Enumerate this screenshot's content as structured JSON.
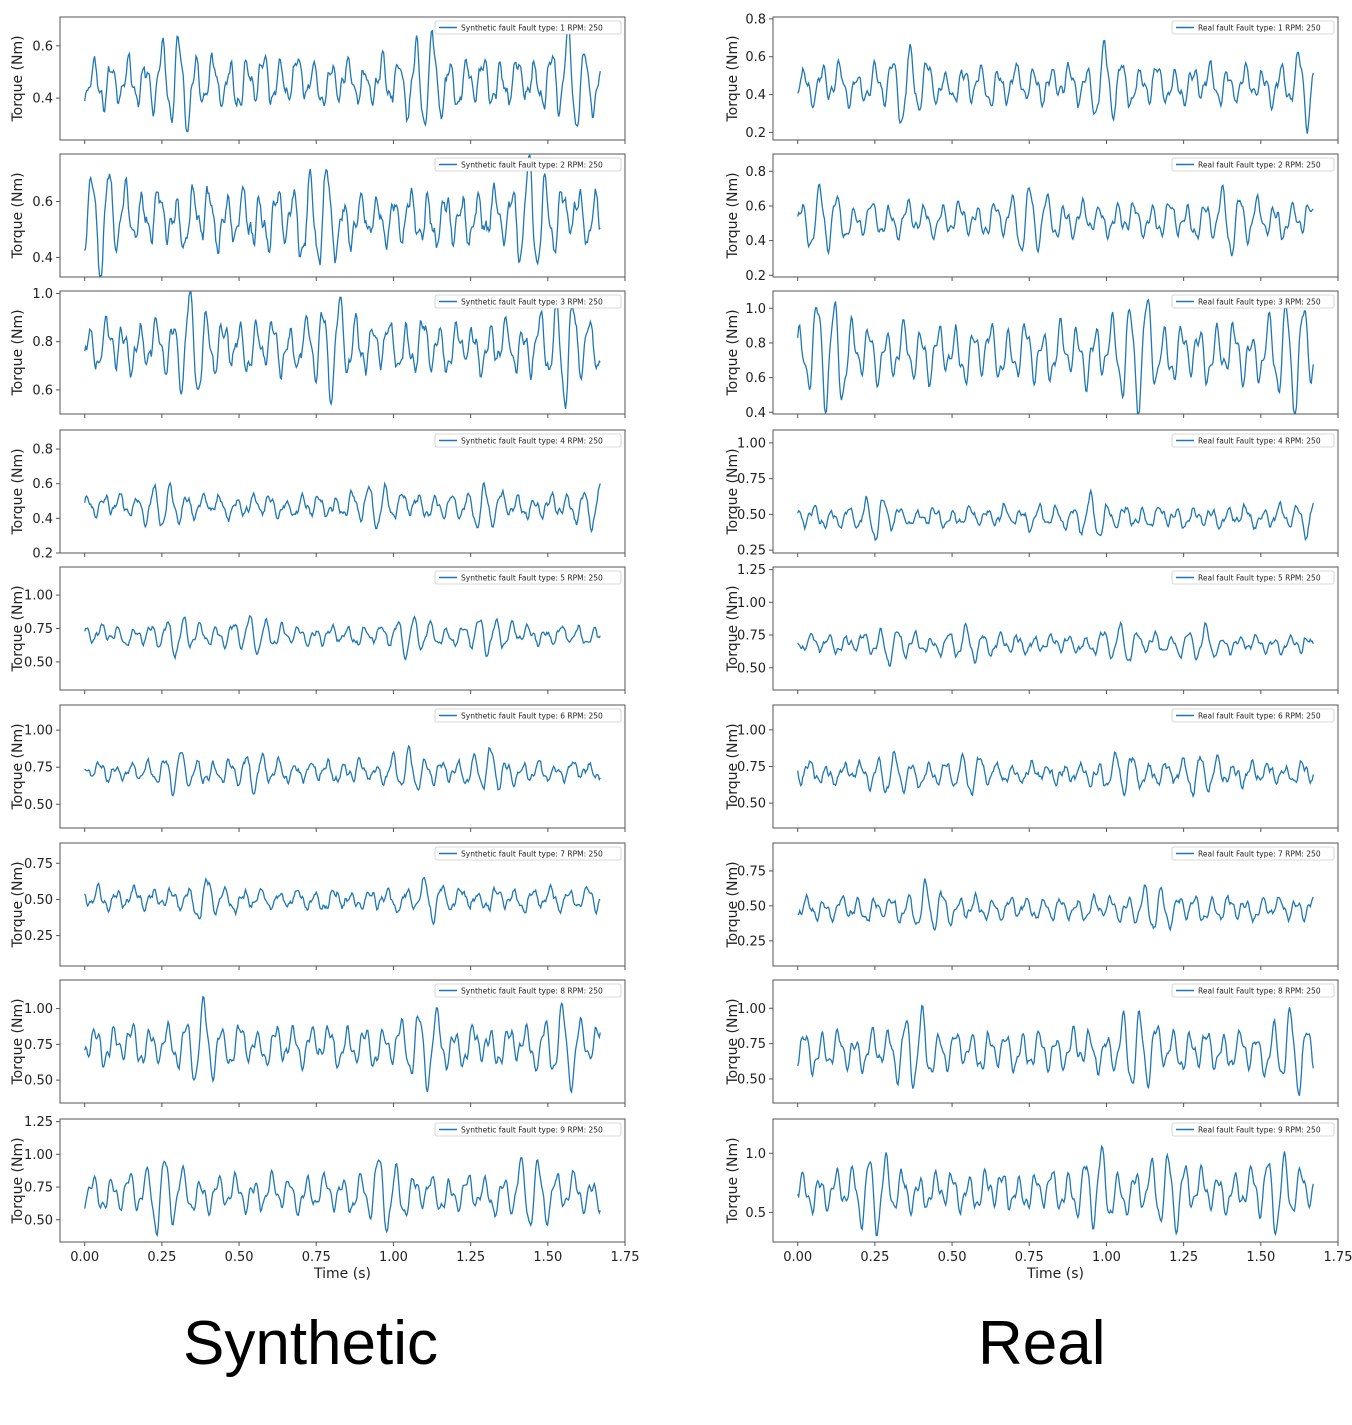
{
  "captions": {
    "left": "Synthetic",
    "right": "Real"
  },
  "style": {
    "line_color": "#1f77b4",
    "axis_color": "#555555",
    "text_color": "#222222"
  },
  "chart_data": [
    {
      "type": "line",
      "group": "Synthetic",
      "fault_type": 1,
      "legend": "Synthetic fault Fault type: 1 RPM: 250",
      "ylabel": "Torque (Nm)",
      "xlabel": "",
      "xlim": [
        -0.08,
        1.75
      ],
      "ylim": [
        0.24,
        0.71
      ],
      "yticks": [
        0.4,
        0.6
      ],
      "ytick_labels": [
        "0.4",
        "0.6"
      ],
      "x_start": 0.0,
      "x_end": 1.67,
      "mean": 0.46,
      "amp": 0.065,
      "noise": 0.04,
      "bursts": [
        [
          0.3,
          0.05
        ],
        [
          1.1,
          0.06
        ],
        [
          1.58,
          0.05
        ]
      ]
    },
    {
      "type": "line",
      "group": "Synthetic",
      "fault_type": 2,
      "legend": "Synthetic fault Fault type: 2 RPM: 250",
      "ylabel": "Torque (Nm)",
      "xlabel": "",
      "xlim": [
        -0.08,
        1.75
      ],
      "ylim": [
        0.33,
        0.77
      ],
      "yticks": [
        0.4,
        0.6
      ],
      "ytick_labels": [
        "0.4",
        "0.6"
      ],
      "x_start": 0.0,
      "x_end": 1.67,
      "mean": 0.54,
      "amp": 0.07,
      "noise": 0.045,
      "bursts": [
        [
          0.05,
          0.04
        ],
        [
          0.75,
          0.06
        ],
        [
          1.45,
          0.08
        ]
      ]
    },
    {
      "type": "line",
      "group": "Synthetic",
      "fault_type": 3,
      "legend": "Synthetic fault Fault type: 3 RPM: 250",
      "ylabel": "Torque (Nm)",
      "xlabel": "",
      "xlim": [
        -0.08,
        1.75
      ],
      "ylim": [
        0.5,
        1.01
      ],
      "yticks": [
        0.6,
        0.8,
        1.0
      ],
      "ytick_labels": [
        "0.6",
        "0.8",
        "1.0"
      ],
      "x_start": 0.0,
      "x_end": 1.67,
      "mean": 0.78,
      "amp": 0.075,
      "noise": 0.04,
      "bursts": [
        [
          0.35,
          0.06
        ],
        [
          0.8,
          0.06
        ],
        [
          1.55,
          0.07
        ]
      ]
    },
    {
      "type": "line",
      "group": "Synthetic",
      "fault_type": 4,
      "legend": "Synthetic fault Fault type: 4 RPM: 250",
      "ylabel": "Torque (Nm)",
      "xlabel": "",
      "xlim": [
        -0.08,
        1.75
      ],
      "ylim": [
        0.2,
        0.91
      ],
      "yticks": [
        0.2,
        0.4,
        0.6,
        0.8
      ],
      "ytick_labels": [
        "0.2",
        "0.4",
        "0.6",
        "0.8"
      ],
      "x_start": 0.0,
      "x_end": 1.67,
      "mean": 0.47,
      "amp": 0.045,
      "noise": 0.035,
      "bursts": [
        [
          0.25,
          0.04
        ],
        [
          0.95,
          0.05
        ],
        [
          1.3,
          0.05
        ],
        [
          1.65,
          0.03
        ]
      ]
    },
    {
      "type": "line",
      "group": "Synthetic",
      "fault_type": 5,
      "legend": "Synthetic fault Fault type: 5 RPM: 250",
      "ylabel": "Torque (Nm)",
      "xlabel": "",
      "xlim": [
        -0.08,
        1.75
      ],
      "ylim": [
        0.29,
        1.21
      ],
      "yticks": [
        0.5,
        0.75,
        1.0
      ],
      "ytick_labels": [
        "0.50",
        "0.75",
        "1.00"
      ],
      "x_start": 0.0,
      "x_end": 1.67,
      "mean": 0.7,
      "amp": 0.05,
      "noise": 0.035,
      "bursts": [
        [
          0.3,
          0.05
        ],
        [
          0.55,
          0.05
        ],
        [
          1.05,
          0.05
        ],
        [
          1.3,
          0.05
        ]
      ]
    },
    {
      "type": "line",
      "group": "Synthetic",
      "fault_type": 6,
      "legend": "Synthetic fault Fault type: 6 RPM: 250",
      "ylabel": "Torque (Nm)",
      "xlabel": "",
      "xlim": [
        -0.08,
        1.75
      ],
      "ylim": [
        0.34,
        1.17
      ],
      "yticks": [
        0.5,
        0.75,
        1.0
      ],
      "ytick_labels": [
        "0.50",
        "0.75",
        "1.00"
      ],
      "x_start": 0.0,
      "x_end": 1.67,
      "mean": 0.72,
      "amp": 0.05,
      "noise": 0.04,
      "bursts": [
        [
          0.3,
          0.06
        ],
        [
          0.55,
          0.06
        ],
        [
          1.05,
          0.05
        ],
        [
          1.3,
          0.06
        ]
      ]
    },
    {
      "type": "line",
      "group": "Synthetic",
      "fault_type": 7,
      "legend": "Synthetic fault Fault type: 7 RPM: 250",
      "ylabel": "Torque (Nm)",
      "xlabel": "",
      "xlim": [
        -0.08,
        1.75
      ],
      "ylim": [
        0.04,
        0.89
      ],
      "yticks": [
        0.25,
        0.5,
        0.75
      ],
      "ytick_labels": [
        "0.25",
        "0.50",
        "0.75"
      ],
      "x_start": 0.0,
      "x_end": 1.67,
      "mean": 0.5,
      "amp": 0.05,
      "noise": 0.04,
      "bursts": [
        [
          0.4,
          0.06
        ],
        [
          1.12,
          0.06
        ]
      ]
    },
    {
      "type": "line",
      "group": "Synthetic",
      "fault_type": 8,
      "legend": "Synthetic fault Fault type: 8 RPM: 250",
      "ylabel": "Torque (Nm)",
      "xlabel": "",
      "xlim": [
        -0.08,
        1.75
      ],
      "ylim": [
        0.34,
        1.2
      ],
      "yticks": [
        0.5,
        0.75,
        1.0
      ],
      "ytick_labels": [
        "0.50",
        "0.75",
        "1.00"
      ],
      "x_start": 0.0,
      "x_end": 1.67,
      "mean": 0.74,
      "amp": 0.1,
      "noise": 0.035,
      "bursts": [
        [
          0.38,
          0.06
        ],
        [
          1.1,
          0.07
        ],
        [
          1.55,
          0.05
        ]
      ]
    },
    {
      "type": "line",
      "group": "Synthetic",
      "fault_type": 9,
      "legend": "Synthetic fault Fault type: 9 RPM: 250",
      "ylabel": "Torque (Nm)",
      "xlabel": "Time (s)",
      "xlim": [
        -0.08,
        1.75
      ],
      "ylim": [
        0.33,
        1.27
      ],
      "yticks": [
        0.5,
        0.75,
        1.0,
        1.25
      ],
      "ytick_labels": [
        "0.50",
        "0.75",
        "1.00",
        "1.25"
      ],
      "x_start": 0.0,
      "x_end": 1.67,
      "mean": 0.7,
      "amp": 0.1,
      "noise": 0.035,
      "bursts": [
        [
          0.25,
          0.05
        ],
        [
          0.97,
          0.05
        ],
        [
          1.45,
          0.06
        ]
      ],
      "xticks": [
        0.0,
        0.25,
        0.5,
        0.75,
        1.0,
        1.25,
        1.5,
        1.75
      ],
      "xtick_labels": [
        "0.00",
        "0.25",
        "0.50",
        "0.75",
        "1.00",
        "1.25",
        "1.50",
        "1.75"
      ]
    },
    {
      "type": "line",
      "group": "Real",
      "fault_type": 1,
      "legend": "Real fault Fault type: 1 RPM: 250",
      "ylabel": "Torque (Nm)",
      "xlabel": "",
      "xlim": [
        -0.08,
        1.75
      ],
      "ylim": [
        0.16,
        0.81
      ],
      "yticks": [
        0.2,
        0.4,
        0.6,
        0.8
      ],
      "ytick_labels": [
        "0.2",
        "0.4",
        "0.6",
        "0.8"
      ],
      "x_start": 0.0,
      "x_end": 1.67,
      "mean": 0.45,
      "amp": 0.07,
      "noise": 0.035,
      "bursts": [
        [
          0.35,
          0.06
        ],
        [
          1.0,
          0.06
        ],
        [
          1.66,
          0.02
        ]
      ]
    },
    {
      "type": "line",
      "group": "Real",
      "fault_type": 2,
      "legend": "Real fault Fault type: 2 RPM: 250",
      "ylabel": "Torque (Nm)",
      "xlabel": "",
      "xlim": [
        -0.08,
        1.75
      ],
      "ylim": [
        0.19,
        0.9
      ],
      "yticks": [
        0.2,
        0.4,
        0.6,
        0.8
      ],
      "ytick_labels": [
        "0.2",
        "0.4",
        "0.6",
        "0.8"
      ],
      "x_start": 0.0,
      "x_end": 1.67,
      "mean": 0.52,
      "amp": 0.07,
      "noise": 0.03,
      "bursts": [
        [
          0.08,
          0.04
        ],
        [
          0.75,
          0.06
        ],
        [
          1.4,
          0.1
        ]
      ]
    },
    {
      "type": "line",
      "group": "Real",
      "fault_type": 3,
      "legend": "Real fault Fault type: 3 RPM: 250",
      "ylabel": "Torque (Nm)",
      "xlabel": "",
      "xlim": [
        -0.08,
        1.75
      ],
      "ylim": [
        0.39,
        1.1
      ],
      "yticks": [
        0.4,
        0.6,
        0.8,
        1.0
      ],
      "ytick_labels": [
        "0.4",
        "0.6",
        "0.8",
        "1.0"
      ],
      "x_start": 0.0,
      "x_end": 1.67,
      "mean": 0.74,
      "amp": 0.12,
      "noise": 0.03,
      "bursts": [
        [
          0.1,
          0.05
        ],
        [
          1.1,
          0.05
        ],
        [
          1.6,
          0.05
        ]
      ]
    },
    {
      "type": "line",
      "group": "Real",
      "fault_type": 4,
      "legend": "Real fault Fault type: 4 RPM: 250",
      "ylabel": "Torque (Nm)",
      "xlabel": "",
      "xlim": [
        -0.08,
        1.75
      ],
      "ylim": [
        0.23,
        1.09
      ],
      "yticks": [
        0.25,
        0.5,
        0.75,
        1.0
      ],
      "ytick_labels": [
        "0.25",
        "0.50",
        "0.75",
        "1.00"
      ],
      "x_start": 0.0,
      "x_end": 1.67,
      "mean": 0.48,
      "amp": 0.05,
      "noise": 0.035,
      "bursts": [
        [
          0.25,
          0.04
        ],
        [
          0.95,
          0.05
        ],
        [
          1.66,
          0.02
        ]
      ]
    },
    {
      "type": "line",
      "group": "Real",
      "fault_type": 5,
      "legend": "Real fault Fault type: 5 RPM: 250",
      "ylabel": "Torque (Nm)",
      "xlabel": "",
      "xlim": [
        -0.08,
        1.75
      ],
      "ylim": [
        0.33,
        1.27
      ],
      "yticks": [
        0.5,
        0.75,
        1.0,
        1.25
      ],
      "ytick_labels": [
        "0.50",
        "0.75",
        "1.00",
        "1.25"
      ],
      "x_start": 0.0,
      "x_end": 1.67,
      "mean": 0.68,
      "amp": 0.05,
      "noise": 0.035,
      "bursts": [
        [
          0.3,
          0.05
        ],
        [
          0.55,
          0.05
        ],
        [
          1.05,
          0.05
        ],
        [
          1.3,
          0.05
        ]
      ]
    },
    {
      "type": "line",
      "group": "Real",
      "fault_type": 6,
      "legend": "Real fault Fault type: 6 RPM: 250",
      "ylabel": "Torque (Nm)",
      "xlabel": "",
      "xlim": [
        -0.08,
        1.75
      ],
      "ylim": [
        0.33,
        1.17
      ],
      "yticks": [
        0.5,
        0.75,
        1.0
      ],
      "ytick_labels": [
        "0.50",
        "0.75",
        "1.00"
      ],
      "x_start": 0.0,
      "x_end": 1.67,
      "mean": 0.7,
      "amp": 0.05,
      "noise": 0.04,
      "bursts": [
        [
          0.3,
          0.06
        ],
        [
          0.55,
          0.06
        ],
        [
          1.05,
          0.05
        ],
        [
          1.3,
          0.06
        ]
      ]
    },
    {
      "type": "line",
      "group": "Real",
      "fault_type": 7,
      "legend": "Real fault Fault type: 7 RPM: 250",
      "ylabel": "Torque (Nm)",
      "xlabel": "",
      "xlim": [
        -0.08,
        1.75
      ],
      "ylim": [
        0.07,
        0.95
      ],
      "yticks": [
        0.25,
        0.5,
        0.75
      ],
      "ytick_labels": [
        "0.25",
        "0.50",
        "0.75"
      ],
      "x_start": 0.0,
      "x_end": 1.67,
      "mean": 0.48,
      "amp": 0.06,
      "noise": 0.035,
      "bursts": [
        [
          0.42,
          0.06
        ],
        [
          1.15,
          0.06
        ]
      ]
    },
    {
      "type": "line",
      "group": "Real",
      "fault_type": 8,
      "legend": "Real fault Fault type: 8 RPM: 250",
      "ylabel": "Torque (Nm)",
      "xlabel": "",
      "xlim": [
        -0.08,
        1.75
      ],
      "ylim": [
        0.33,
        1.2
      ],
      "yticks": [
        0.5,
        0.75,
        1.0
      ],
      "ytick_labels": [
        "0.50",
        "0.75",
        "1.00"
      ],
      "x_start": 0.0,
      "x_end": 1.67,
      "mean": 0.7,
      "amp": 0.1,
      "noise": 0.035,
      "bursts": [
        [
          0.38,
          0.06
        ],
        [
          1.1,
          0.07
        ],
        [
          1.6,
          0.05
        ]
      ]
    },
    {
      "type": "line",
      "group": "Real",
      "fault_type": 9,
      "legend": "Real fault Fault type: 9 RPM: 250",
      "ylabel": "Torque (Nm)",
      "xlabel": "Time (s)",
      "xlim": [
        -0.08,
        1.75
      ],
      "ylim": [
        0.25,
        1.29
      ],
      "yticks": [
        0.5,
        1.0
      ],
      "ytick_labels": [
        "0.5",
        "1.0"
      ],
      "x_start": 0.0,
      "x_end": 1.67,
      "mean": 0.68,
      "amp": 0.12,
      "noise": 0.04,
      "bursts": [
        [
          0.25,
          0.05
        ],
        [
          0.97,
          0.05
        ],
        [
          1.2,
          0.05
        ],
        [
          1.55,
          0.05
        ]
      ],
      "xticks": [
        0.0,
        0.25,
        0.5,
        0.75,
        1.0,
        1.25,
        1.5,
        1.75
      ],
      "xtick_labels": [
        "0.00",
        "0.25",
        "0.50",
        "0.75",
        "1.00",
        "1.25",
        "1.50",
        "1.75"
      ]
    }
  ]
}
